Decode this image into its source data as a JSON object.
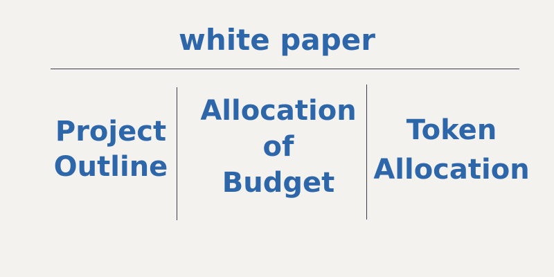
{
  "header": {
    "title": "white paper"
  },
  "columns": [
    {
      "lines": [
        "Project",
        "Outline"
      ]
    },
    {
      "lines": [
        "Allocation",
        "of",
        "Budget"
      ]
    },
    {
      "lines": [
        "Token",
        "Allocation"
      ]
    }
  ],
  "colors": {
    "text": "#2e66aa",
    "background": "#f3f2ee",
    "rule": "#3b3b4a"
  }
}
